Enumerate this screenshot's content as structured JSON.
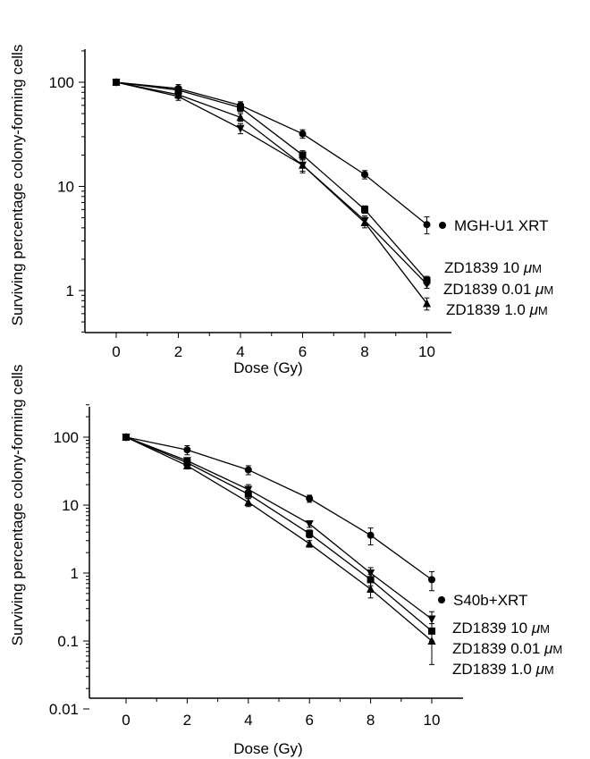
{
  "chart_data": [
    {
      "type": "line",
      "ylog": true,
      "xlabel": "Dose (Gy)",
      "ylabel": "Surviving percentage colony-forming cells",
      "x": [
        0,
        2,
        4,
        6,
        8,
        10
      ],
      "xlim": [
        -1,
        11
      ],
      "ylim": [
        0.4,
        250
      ],
      "xticks": [
        "0",
        "2",
        "4",
        "6",
        "8",
        "10"
      ],
      "yticks": [
        {
          "value": 1,
          "label": "1"
        },
        {
          "value": 10,
          "label": "10"
        },
        {
          "value": 100,
          "label": "100"
        }
      ],
      "series": [
        {
          "name": "MGH-U1 XRT",
          "marker": "circle",
          "values": [
            100,
            87,
            60,
            32,
            13,
            4.3
          ],
          "err": [
            0,
            8,
            5,
            3,
            1.2,
            0.8
          ]
        },
        {
          "name": "ZD1839 10 μM",
          "marker": "square",
          "values": [
            100,
            84,
            57,
            20,
            6.0,
            1.25
          ],
          "err": [
            0,
            7,
            5,
            2,
            0.5,
            0.12
          ]
        },
        {
          "name": "ZD1839 0.01 μM",
          "marker": "triangle-down",
          "values": [
            100,
            73,
            36,
            16,
            4.7,
            1.15
          ],
          "err": [
            0,
            6,
            4,
            2.5,
            0.5,
            0.1
          ]
        },
        {
          "name": "ZD1839 1.0 μM",
          "marker": "triangle-up",
          "values": [
            100,
            76,
            46,
            16,
            4.5,
            0.75
          ],
          "err": [
            0,
            6,
            4,
            2,
            0.5,
            0.1
          ]
        }
      ]
    },
    {
      "type": "line",
      "ylog": true,
      "xlabel": "Dose (Gy)",
      "ylabel": "Surviving percentage colony-forming cells",
      "x": [
        0,
        2,
        4,
        6,
        8,
        10
      ],
      "xlim": [
        -1,
        11
      ],
      "ylim": [
        0.01,
        300
      ],
      "xticks": [
        "0",
        "2",
        "4",
        "6",
        "8",
        "10"
      ],
      "yticks": [
        {
          "value": 0.01,
          "label": "0.01"
        },
        {
          "value": 0.1,
          "label": "0.1"
        },
        {
          "value": 1,
          "label": "1"
        },
        {
          "value": 10,
          "label": "10"
        },
        {
          "value": 100,
          "label": "100"
        }
      ],
      "series": [
        {
          "name": "S40b+XRT",
          "marker": "circle",
          "values": [
            100,
            65,
            33,
            12.5,
            3.6,
            0.8
          ],
          "err": [
            0,
            10,
            5,
            1.5,
            1.0,
            0.25
          ]
        },
        {
          "name": "ZD1839 10 μM",
          "marker": "triangle-down",
          "values": [
            100,
            45,
            17,
            5.3,
            1.0,
            0.21
          ],
          "err": [
            0,
            5,
            3,
            0.6,
            0.2,
            0.06
          ]
        },
        {
          "name": "ZD1839 0.01 μM",
          "marker": "square",
          "values": [
            100,
            42,
            14.5,
            3.8,
            0.8,
            0.14
          ],
          "err": [
            0,
            4,
            2,
            0.5,
            0.15,
            0.04
          ]
        },
        {
          "name": "ZD1839 1.0 μM",
          "marker": "triangle-up",
          "values": [
            100,
            38,
            11,
            2.7,
            0.58,
            0.1
          ],
          "err": [
            0,
            4,
            1.5,
            0.3,
            0.15,
            0.055
          ]
        }
      ]
    }
  ]
}
